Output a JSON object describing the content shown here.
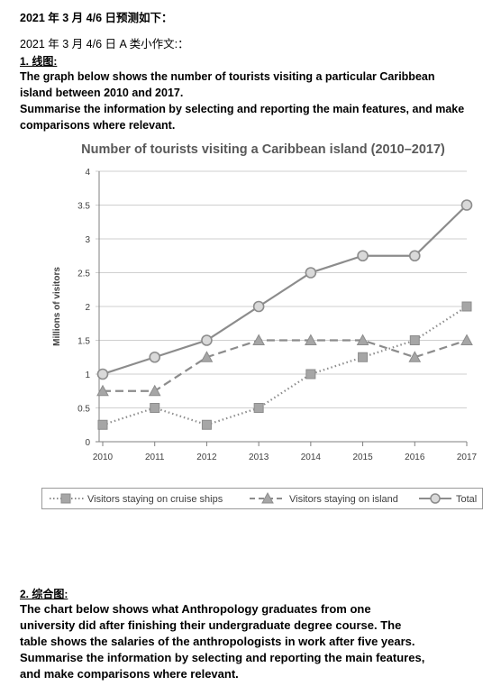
{
  "doc": {
    "heading": "2021 年 3 月 4/6 日预测如下：",
    "subheading": "2021 年 3 月 4/6 日 A 类小作文:：",
    "section1": {
      "label": "1. 线图:",
      "task_lines": [
        "The graph below shows the number of tourists visiting a particular Caribbean",
        "island between 2010 and 2017.",
        "Summarise the information by selecting and reporting the main features, and make",
        "comparisons where relevant."
      ]
    },
    "section2": {
      "label": "2. 综合图:",
      "task_lines": [
        "The chart below shows what Anthropology graduates from one",
        "university did after finishing their undergraduate degree course. The",
        "table shows the salaries of the anthropologists in work after five years.",
        "Summarise the information by selecting and reporting the main features,",
        "and make comparisons where relevant."
      ]
    }
  },
  "chart_data": {
    "type": "line",
    "title": "Number of tourists visiting a Caribbean island (2010–2017)",
    "xlabel": "",
    "ylabel": "Millions of visitors",
    "x": [
      "2010",
      "2011",
      "2012",
      "2013",
      "2014",
      "2015",
      "2016",
      "2017"
    ],
    "ylim": [
      0,
      4
    ],
    "yticks": [
      "0",
      "0.5",
      "1",
      "1.5",
      "2",
      "2.5",
      "3",
      "3.5",
      "4"
    ],
    "grid": true,
    "legend_position": "bottom",
    "series": [
      {
        "name": "Visitors staying on cruise ships",
        "style": "dotted",
        "marker": "square",
        "values": [
          0.25,
          0.5,
          0.25,
          0.5,
          1.0,
          1.25,
          1.5,
          2.0
        ]
      },
      {
        "name": "Visitors staying on island",
        "style": "dashed",
        "marker": "triangle",
        "values": [
          0.75,
          0.75,
          1.25,
          1.5,
          1.5,
          1.5,
          1.25,
          1.5
        ]
      },
      {
        "name": "Total",
        "style": "solid",
        "marker": "circle",
        "values": [
          1.0,
          1.25,
          1.5,
          2.0,
          2.5,
          2.75,
          2.75,
          3.5
        ]
      }
    ],
    "colors": {
      "line": "#8c8c8c",
      "marker_fill": "#a6a6a6",
      "circle_fill": "#d9d9d9",
      "grid": "#cfcfcf",
      "title": "#595959"
    }
  }
}
